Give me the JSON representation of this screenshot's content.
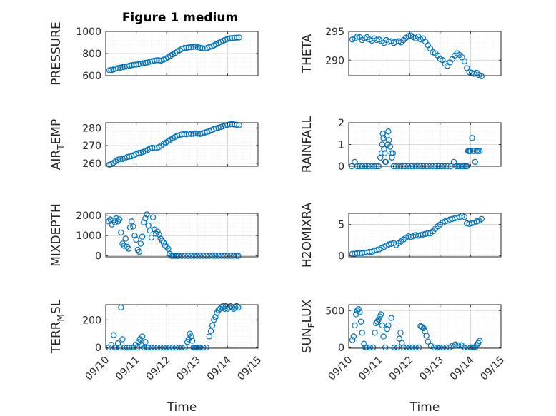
{
  "figure_title": "Figure 1 medium",
  "colors": {
    "marker": "#0072BD",
    "axes": "#262626",
    "grid": "#b0b0b0",
    "background": "#ffffff"
  },
  "chart_data": [
    {
      "type": "scatter",
      "ylabel": "PRESSURE",
      "xlabel": "",
      "xlim": [
        "09/10",
        "09/15"
      ],
      "ylim": [
        600,
        1000
      ],
      "yticks": [
        600,
        800,
        1000
      ],
      "ytick_labels": [
        "600",
        "800",
        "1000"
      ],
      "xticks": [
        "09/10",
        "09/11",
        "09/12",
        "09/13",
        "09/14",
        "09/15"
      ],
      "show_xticklabels": false,
      "grid": true,
      "marker": "open-circle",
      "x": [
        0.12,
        0.18,
        0.25,
        0.32,
        0.4,
        0.48,
        0.55,
        0.62,
        0.7,
        0.78,
        0.85,
        0.92,
        1.0,
        1.08,
        1.15,
        1.22,
        1.3,
        1.38,
        1.45,
        1.52,
        1.6,
        1.68,
        1.75,
        1.82,
        1.9,
        1.98,
        2.05,
        2.12,
        2.2,
        2.28,
        2.35,
        2.42,
        2.5,
        2.58,
        2.65,
        2.72,
        2.8,
        2.88,
        2.95,
        3.02,
        3.1,
        3.18,
        3.25,
        3.32,
        3.4,
        3.48,
        3.55,
        3.62,
        3.7,
        3.78,
        3.85,
        3.92,
        4.0,
        4.08,
        4.15,
        4.22,
        4.3,
        4.38
      ],
      "y": [
        648,
        650,
        655,
        665,
        668,
        672,
        676,
        680,
        684,
        690,
        694,
        698,
        700,
        703,
        708,
        712,
        716,
        720,
        726,
        730,
        736,
        740,
        738,
        736,
        745,
        755,
        768,
        780,
        792,
        805,
        818,
        830,
        842,
        850,
        852,
        855,
        858,
        860,
        862,
        858,
        852,
        848,
        845,
        850,
        858,
        866,
        874,
        884,
        896,
        906,
        916,
        924,
        932,
        938,
        940,
        942,
        944,
        945
      ]
    },
    {
      "type": "scatter",
      "ylabel": "THETA",
      "xlabel": "",
      "xlim": [
        "09/10",
        "09/15"
      ],
      "ylim": [
        287.3,
        295
      ],
      "yticks": [
        290,
        295
      ],
      "ytick_labels": [
        "290",
        "295"
      ],
      "xticks": [
        "09/10",
        "09/11",
        "09/12",
        "09/13",
        "09/14",
        "09/15"
      ],
      "show_xticklabels": false,
      "grid": true,
      "marker": "open-circle",
      "x": [
        0.12,
        0.2,
        0.28,
        0.36,
        0.44,
        0.52,
        0.6,
        0.68,
        0.76,
        0.84,
        0.92,
        1.0,
        1.08,
        1.16,
        1.24,
        1.32,
        1.4,
        1.48,
        1.56,
        1.64,
        1.72,
        1.8,
        1.88,
        1.96,
        2.04,
        2.12,
        2.2,
        2.28,
        2.36,
        2.44,
        2.52,
        2.6,
        2.68,
        2.76,
        2.84,
        2.92,
        3.0,
        3.08,
        3.16,
        3.24,
        3.32,
        3.4,
        3.48,
        3.56,
        3.64,
        3.72,
        3.8,
        3.88,
        3.96,
        4.04,
        4.12,
        4.2,
        4.28,
        4.36
      ],
      "y": [
        293.6,
        293.8,
        294.1,
        294.0,
        293.5,
        293.8,
        294.0,
        293.6,
        293.4,
        293.8,
        293.5,
        293.6,
        293.3,
        293.0,
        293.5,
        293.2,
        293.3,
        293.0,
        293.2,
        293.3,
        293.1,
        293.5,
        293.9,
        294.2,
        294.3,
        294.0,
        293.8,
        294.1,
        293.6,
        293.8,
        293.2,
        292.6,
        292.0,
        291.4,
        291.2,
        290.8,
        290.2,
        290.0,
        289.4,
        289.0,
        289.6,
        290.2,
        290.8,
        291.2,
        290.9,
        290.5,
        289.8,
        288.6,
        287.9,
        287.8,
        287.6,
        287.8,
        287.4,
        287.2
      ]
    },
    {
      "type": "scatter",
      "ylabel": "AIR_TEMP",
      "ylabel_parts": [
        "AIR",
        "T",
        "EMP"
      ],
      "xlabel": "",
      "xlim": [
        "09/10",
        "09/15"
      ],
      "ylim": [
        258.3,
        283
      ],
      "yticks": [
        260,
        270,
        280
      ],
      "ytick_labels": [
        "260",
        "270",
        "280"
      ],
      "xticks": [
        "09/10",
        "09/11",
        "09/12",
        "09/13",
        "09/14",
        "09/15"
      ],
      "show_xticklabels": false,
      "grid": true,
      "marker": "open-circle",
      "x": [
        0.12,
        0.18,
        0.25,
        0.32,
        0.4,
        0.48,
        0.55,
        0.62,
        0.7,
        0.78,
        0.85,
        0.92,
        1.0,
        1.08,
        1.15,
        1.22,
        1.3,
        1.38,
        1.45,
        1.52,
        1.6,
        1.68,
        1.75,
        1.82,
        1.9,
        1.98,
        2.05,
        2.12,
        2.2,
        2.28,
        2.35,
        2.42,
        2.5,
        2.58,
        2.65,
        2.72,
        2.8,
        2.88,
        2.95,
        3.02,
        3.1,
        3.18,
        3.25,
        3.32,
        3.4,
        3.48,
        3.55,
        3.62,
        3.7,
        3.78,
        3.85,
        3.92,
        4.0,
        4.08,
        4.15,
        4.22,
        4.3,
        4.38
      ],
      "y": [
        259.2,
        259.5,
        260.2,
        261.0,
        262.0,
        262.5,
        262.4,
        262.8,
        263.5,
        263.8,
        264.0,
        264.6,
        265.2,
        265.8,
        266.0,
        266.4,
        267.0,
        267.6,
        268.4,
        268.8,
        268.6,
        268.7,
        269.2,
        270.0,
        271.0,
        271.8,
        272.6,
        273.4,
        274.2,
        275.0,
        275.6,
        276.0,
        276.4,
        276.6,
        276.4,
        276.8,
        276.6,
        276.7,
        277.0,
        276.8,
        276.6,
        277.0,
        277.4,
        277.8,
        278.2,
        278.8,
        279.4,
        279.8,
        280.2,
        280.6,
        281.0,
        281.4,
        281.8,
        282.1,
        282.2,
        282.0,
        281.8,
        281.6
      ]
    },
    {
      "type": "scatter",
      "ylabel": "RAINFALL",
      "xlabel": "",
      "xlim": [
        "09/10",
        "09/15"
      ],
      "ylim": [
        0,
        2
      ],
      "yticks": [
        0,
        1,
        2
      ],
      "ytick_labels": [
        "0",
        "1",
        "2"
      ],
      "xticks": [
        "09/10",
        "09/11",
        "09/12",
        "09/13",
        "09/14",
        "09/15"
      ],
      "show_xticklabels": false,
      "grid": true,
      "marker": "open-circle",
      "x": [
        0.1,
        0.2,
        0.28,
        0.36,
        0.45,
        0.55,
        0.65,
        0.75,
        0.85,
        0.92,
        0.98,
        1.04,
        1.08,
        1.1,
        1.12,
        1.14,
        1.16,
        1.18,
        1.2,
        1.22,
        1.25,
        1.28,
        1.3,
        1.32,
        1.36,
        1.4,
        1.42,
        1.45,
        1.48,
        1.55,
        1.65,
        1.75,
        1.85,
        1.95,
        2.05,
        2.15,
        2.25,
        2.35,
        2.45,
        2.55,
        2.65,
        2.75,
        2.85,
        2.95,
        3.05,
        3.15,
        3.25,
        3.35,
        3.45,
        3.55,
        3.6,
        3.65,
        3.75,
        3.8,
        3.85,
        3.88,
        3.92,
        3.95,
        3.98,
        4.0,
        4.05,
        4.1,
        4.15,
        4.2,
        4.25,
        4.3
      ],
      "y": [
        0,
        0.2,
        0,
        0,
        0,
        0,
        0,
        0,
        0,
        0,
        0,
        0.4,
        0.6,
        1.0,
        1.5,
        1.3,
        0.8,
        0.6,
        0.2,
        0.2,
        1.4,
        1.0,
        1.6,
        1.2,
        0.9,
        0.6,
        0.4,
        0.6,
        0,
        0,
        0,
        0,
        0,
        0,
        0,
        0,
        0,
        0,
        0,
        0,
        0,
        0,
        0,
        0,
        0,
        0,
        0,
        0,
        0.2,
        0,
        0,
        0,
        0,
        0,
        0,
        0,
        0.7,
        0.7,
        0.7,
        0.7,
        1.3,
        0.7,
        0.2,
        0.7,
        0.7,
        0.7
      ]
    },
    {
      "type": "scatter",
      "ylabel": "MIXDEPTH",
      "xlabel": "",
      "xlim": [
        "09/10",
        "09/15"
      ],
      "ylim": [
        -50,
        2100
      ],
      "yticks": [
        0,
        1000,
        2000
      ],
      "ytick_labels": [
        "0",
        "1000",
        "2000"
      ],
      "xticks": [
        "09/10",
        "09/11",
        "09/12",
        "09/13",
        "09/14",
        "09/15"
      ],
      "show_xticklabels": false,
      "grid": true,
      "marker": "open-circle",
      "x": [
        0.1,
        0.15,
        0.2,
        0.25,
        0.3,
        0.35,
        0.4,
        0.45,
        0.5,
        0.55,
        0.6,
        0.65,
        0.7,
        0.75,
        0.8,
        0.85,
        0.9,
        0.95,
        1.0,
        1.05,
        1.1,
        1.15,
        1.2,
        1.25,
        1.3,
        1.35,
        1.4,
        1.45,
        1.5,
        1.55,
        1.6,
        1.65,
        1.7,
        1.75,
        1.8,
        1.85,
        1.9,
        1.95,
        2.0,
        2.05,
        2.1,
        2.15,
        2.2,
        2.25,
        2.3,
        2.35,
        2.4,
        2.5,
        2.6,
        2.7,
        2.8,
        2.9,
        3.0,
        3.1,
        3.2,
        3.3,
        3.4,
        3.5,
        3.6,
        3.7,
        3.8,
        3.9,
        4.0,
        4.1,
        4.2,
        4.3,
        4.35
      ],
      "y": [
        1700,
        1800,
        1550,
        1750,
        1650,
        1850,
        1700,
        1800,
        1150,
        600,
        500,
        850,
        450,
        350,
        1400,
        1700,
        1450,
        1000,
        800,
        300,
        200,
        600,
        950,
        1650,
        1850,
        2050,
        1500,
        1250,
        900,
        1900,
        1300,
        1100,
        1200,
        1050,
        850,
        750,
        650,
        500,
        450,
        350,
        100,
        0,
        0,
        0,
        0,
        0,
        0,
        0,
        0,
        0,
        0,
        0,
        0,
        0,
        0,
        0,
        0,
        0,
        0,
        0,
        0,
        0,
        0,
        0,
        0,
        0,
        0
      ]
    },
    {
      "type": "scatter",
      "ylabel": "H2OMIXRA",
      "xlabel": "",
      "xlim": [
        "09/10",
        "09/15"
      ],
      "ylim": [
        -0.2,
        6.8
      ],
      "yticks": [
        0,
        5
      ],
      "ytick_labels": [
        "0",
        "5"
      ],
      "xticks": [
        "09/10",
        "09/11",
        "09/12",
        "09/13",
        "09/14",
        "09/15"
      ],
      "show_xticklabels": false,
      "grid": true,
      "marker": "open-circle",
      "x": [
        0.12,
        0.2,
        0.28,
        0.36,
        0.44,
        0.52,
        0.6,
        0.68,
        0.76,
        0.84,
        0.92,
        1.0,
        1.08,
        1.16,
        1.24,
        1.32,
        1.4,
        1.48,
        1.56,
        1.64,
        1.72,
        1.8,
        1.88,
        1.96,
        2.04,
        2.12,
        2.2,
        2.28,
        2.36,
        2.44,
        2.52,
        2.6,
        2.68,
        2.76,
        2.84,
        2.92,
        3.0,
        3.08,
        3.16,
        3.24,
        3.32,
        3.4,
        3.48,
        3.56,
        3.64,
        3.72,
        3.8,
        3.88,
        3.96,
        4.04,
        4.12,
        4.2,
        4.28,
        4.36
      ],
      "y": [
        0.3,
        0.3,
        0.4,
        0.4,
        0.4,
        0.5,
        0.5,
        0.6,
        0.6,
        0.8,
        0.9,
        1.0,
        1.2,
        1.4,
        1.6,
        1.8,
        1.9,
        2.0,
        1.7,
        2.0,
        2.3,
        2.6,
        2.9,
        3.1,
        3.0,
        3.1,
        3.3,
        3.2,
        3.3,
        3.4,
        3.5,
        3.6,
        3.6,
        3.9,
        4.3,
        4.7,
        5.0,
        5.3,
        5.5,
        5.6,
        5.8,
        5.9,
        6.0,
        6.1,
        6.2,
        6.4,
        6.2,
        5.2,
        5.1,
        5.2,
        5.3,
        5.5,
        5.6,
        5.9
      ]
    },
    {
      "type": "scatter",
      "ylabel": "TERR_MSL",
      "ylabel_parts": [
        "TERR",
        "M",
        "SL"
      ],
      "xlabel": "Time",
      "xlim": [
        "09/10",
        "09/15"
      ],
      "ylim": [
        -5,
        310
      ],
      "yticks": [
        0,
        200
      ],
      "ytick_labels": [
        "0",
        "200"
      ],
      "xticks": [
        "09/10",
        "09/11",
        "09/12",
        "09/13",
        "09/14",
        "09/15"
      ],
      "show_xticklabels": true,
      "grid": true,
      "marker": "open-circle",
      "x": [
        0.1,
        0.18,
        0.26,
        0.3,
        0.34,
        0.4,
        0.45,
        0.5,
        0.55,
        0.62,
        0.7,
        0.78,
        0.86,
        0.92,
        0.98,
        1.04,
        1.08,
        1.12,
        1.16,
        1.2,
        1.25,
        1.3,
        1.35,
        1.4,
        1.5,
        1.6,
        1.7,
        1.8,
        1.9,
        2.0,
        2.1,
        2.2,
        2.3,
        2.4,
        2.5,
        2.6,
        2.68,
        2.72,
        2.76,
        2.8,
        2.84,
        2.88,
        2.92,
        2.96,
        3.0,
        3.05,
        3.1,
        3.2,
        3.3,
        3.4,
        3.45,
        3.5,
        3.55,
        3.6,
        3.65,
        3.7,
        3.75,
        3.8,
        3.85,
        3.9,
        3.95,
        4.0,
        4.05,
        4.1,
        4.15,
        4.2,
        4.25,
        4.3,
        4.35
      ],
      "y": [
        0,
        20,
        90,
        0,
        0,
        30,
        0,
        290,
        60,
        0,
        0,
        0,
        0,
        0,
        20,
        0,
        40,
        60,
        20,
        80,
        0,
        40,
        0,
        0,
        0,
        0,
        0,
        0,
        0,
        0,
        0,
        0,
        0,
        0,
        0,
        0,
        40,
        60,
        100,
        80,
        50,
        0,
        0,
        0,
        0,
        0,
        0,
        0,
        0,
        80,
        120,
        160,
        200,
        220,
        250,
        270,
        280,
        290,
        300,
        280,
        300,
        280,
        290,
        300,
        290,
        280,
        290,
        300,
        290
      ]
    },
    {
      "type": "scatter",
      "ylabel": "SUN_FLUX",
      "ylabel_parts": [
        "SUN",
        "F",
        "LUX"
      ],
      "xlabel": "Time",
      "xlim": [
        "09/10",
        "09/15"
      ],
      "ylim": [
        -10,
        580
      ],
      "yticks": [
        0,
        500
      ],
      "ytick_labels": [
        "0",
        "500"
      ],
      "xticks": [
        "09/10",
        "09/11",
        "09/12",
        "09/13",
        "09/14",
        "09/15"
      ],
      "show_xticklabels": true,
      "grid": true,
      "marker": "open-circle",
      "x": [
        0.12,
        0.16,
        0.2,
        0.24,
        0.28,
        0.32,
        0.36,
        0.4,
        0.44,
        0.5,
        0.55,
        0.6,
        0.7,
        0.8,
        0.86,
        0.9,
        0.94,
        0.98,
        1.02,
        1.06,
        1.1,
        1.14,
        1.2,
        1.26,
        1.3,
        1.4,
        1.5,
        1.6,
        1.66,
        1.7,
        1.75,
        1.8,
        1.9,
        2.0,
        2.1,
        2.2,
        2.3,
        2.36,
        2.4,
        2.46,
        2.5,
        2.55,
        2.6,
        2.7,
        2.8,
        2.9,
        3.0,
        3.1,
        3.2,
        3.3,
        3.4,
        3.5,
        3.6,
        3.7,
        3.8,
        3.9,
        4.0,
        4.05,
        4.1,
        4.15,
        4.2,
        4.25,
        4.3
      ],
      "y": [
        100,
        150,
        300,
        450,
        500,
        520,
        480,
        350,
        200,
        50,
        0,
        0,
        0,
        0,
        200,
        330,
        350,
        380,
        420,
        450,
        300,
        150,
        0,
        250,
        300,
        400,
        0,
        0,
        120,
        200,
        60,
        0,
        0,
        0,
        0,
        0,
        0,
        290,
        280,
        260,
        220,
        160,
        80,
        20,
        0,
        0,
        0,
        0,
        0,
        0,
        20,
        40,
        30,
        30,
        0,
        0,
        0,
        0,
        0,
        0,
        30,
        60,
        90
      ]
    }
  ]
}
